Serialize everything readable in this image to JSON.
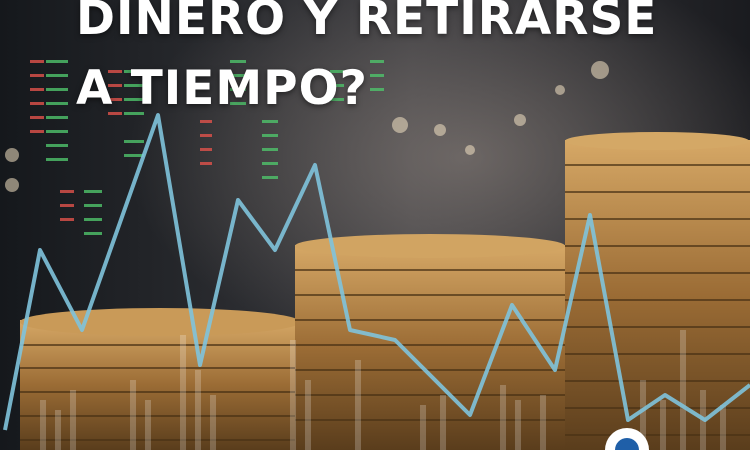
{
  "headline": {
    "line1": "DINERO Y RETIRARSE",
    "line2": "A TIEMPO?"
  },
  "colors": {
    "headline_text": "#ffffff",
    "trend_line": "#7fc3dc",
    "coin_gold": "#b8884a",
    "coin_dark": "#5a3d1c",
    "ticker_red": "#e0524b",
    "ticker_green": "#4fc36b",
    "background_dark": "#1b1d20"
  },
  "icons": {
    "logo_corner": "circular-logo-icon"
  }
}
